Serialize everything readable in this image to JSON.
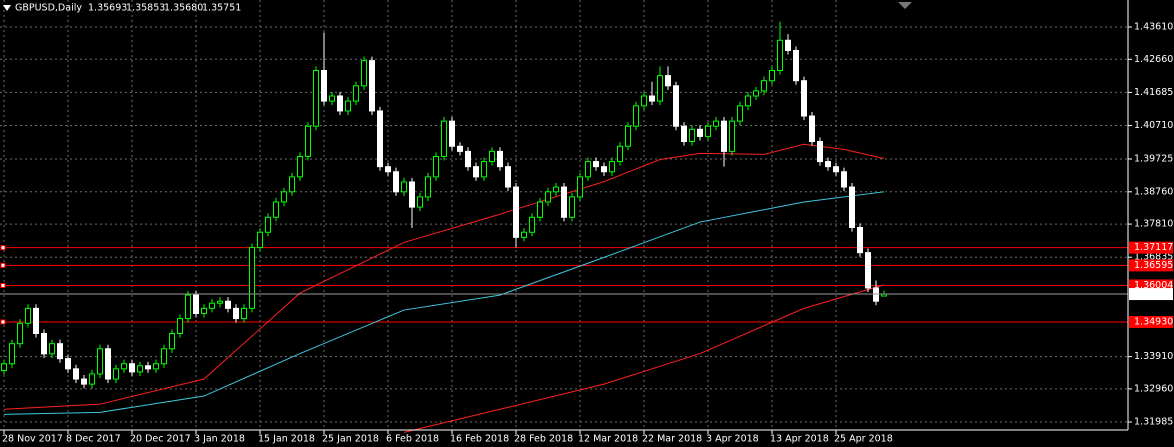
{
  "chart_data": {
    "type": "candlestick",
    "symbol": "GBPUSD,Daily",
    "quote": [
      1.35693,
      1.35853,
      1.3568,
      1.35751
    ],
    "quote_labels": [
      "1.35693",
      "1.35853",
      "1.35680",
      "1.35751"
    ],
    "xlim": [
      -0.5,
      140.5
    ],
    "ylim": [
      1.3175,
      1.44405
    ],
    "xticks": [
      {
        "value": 0,
        "label": "28 Nov 2017"
      },
      {
        "value": 8,
        "label": "8 Dec 2017"
      },
      {
        "value": 16,
        "label": "20 Dec 2017"
      },
      {
        "value": 24,
        "label": "3 Jan 2018"
      },
      {
        "value": 32,
        "label": "15 Jan 2018"
      },
      {
        "value": 40,
        "label": "25 Jan 2018"
      },
      {
        "value": 48,
        "label": "6 Feb 2018"
      },
      {
        "value": 56,
        "label": "16 Feb 2018"
      },
      {
        "value": 64,
        "label": "28 Feb 2018"
      },
      {
        "value": 72,
        "label": "12 Mar 2018"
      },
      {
        "value": 80,
        "label": "22 Mar 2018"
      },
      {
        "value": 88,
        "label": "3 Apr 2018"
      },
      {
        "value": 96,
        "label": "13 Apr 2018"
      },
      {
        "value": 104,
        "label": "25 Apr 2018"
      }
    ],
    "yticks": [
      {
        "value": 1.4361,
        "label": "1.43610"
      },
      {
        "value": 1.4266,
        "label": "1.42660"
      },
      {
        "value": 1.41685,
        "label": "1.41685"
      },
      {
        "value": 1.4071,
        "label": "1.40710"
      },
      {
        "value": 1.39725,
        "label": "1.39725"
      },
      {
        "value": 1.3876,
        "label": "1.38760"
      },
      {
        "value": 1.3781,
        "label": "1.37810"
      },
      {
        "value": 1.36835,
        "label": "1.36835"
      },
      {
        "value": 1.3391,
        "label": "1.33910"
      },
      {
        "value": 1.3296,
        "label": "1.32960"
      },
      {
        "value": 1.31985,
        "label": "1.31985"
      }
    ],
    "grid": true,
    "up_color": "#00ff00",
    "down_color": "#ffffff",
    "levels": [
      {
        "value": 1.37117,
        "label": "1.37117"
      },
      {
        "value": 1.36595,
        "label": "1.36595"
      },
      {
        "value": 1.36004,
        "label": "1.36004"
      },
      {
        "value": 1.3493,
        "label": "1.34930"
      }
    ],
    "level_color": "#ff0000",
    "ohlc": [
      [
        1.335,
        1.3382,
        1.3338,
        1.337
      ],
      [
        1.337,
        1.3441,
        1.3358,
        1.3429
      ],
      [
        1.3429,
        1.3501,
        1.3417,
        1.3489
      ],
      [
        1.3489,
        1.3545,
        1.3477,
        1.3533
      ],
      [
        1.3533,
        1.3545,
        1.3447,
        1.3459
      ],
      [
        1.3459,
        1.3471,
        1.3387,
        1.3399
      ],
      [
        1.3399,
        1.3441,
        1.3387,
        1.3429
      ],
      [
        1.3429,
        1.3441,
        1.3373,
        1.3385
      ],
      [
        1.3385,
        1.3397,
        1.3343,
        1.3355
      ],
      [
        1.3355,
        1.3367,
        1.3313,
        1.3325
      ],
      [
        1.3325,
        1.3337,
        1.3298,
        1.331
      ],
      [
        1.331,
        1.3352,
        1.3298,
        1.334
      ],
      [
        1.334,
        1.3426,
        1.3328,
        1.3414
      ],
      [
        1.3414,
        1.3426,
        1.3313,
        1.3325
      ],
      [
        1.3325,
        1.3367,
        1.3313,
        1.3355
      ],
      [
        1.3355,
        1.3382,
        1.3343,
        1.337
      ],
      [
        1.337,
        1.3382,
        1.3334,
        1.3346
      ],
      [
        1.3346,
        1.3376,
        1.3334,
        1.3364
      ],
      [
        1.3364,
        1.3376,
        1.3343,
        1.3355
      ],
      [
        1.3355,
        1.3382,
        1.3343,
        1.337
      ],
      [
        1.337,
        1.3426,
        1.3358,
        1.3414
      ],
      [
        1.3414,
        1.3471,
        1.3402,
        1.3459
      ],
      [
        1.3459,
        1.3515,
        1.3447,
        1.3503
      ],
      [
        1.3503,
        1.3584,
        1.3491,
        1.3572
      ],
      [
        1.3572,
        1.3584,
        1.3506,
        1.3518
      ],
      [
        1.3518,
        1.3545,
        1.3506,
        1.3533
      ],
      [
        1.3533,
        1.356,
        1.3521,
        1.3548
      ],
      [
        1.3548,
        1.3566,
        1.3536,
        1.3554
      ],
      [
        1.3554,
        1.3566,
        1.3521,
        1.3533
      ],
      [
        1.3533,
        1.3545,
        1.3491,
        1.3503
      ],
      [
        1.3503,
        1.3545,
        1.3491,
        1.3533
      ],
      [
        1.3533,
        1.3724,
        1.3521,
        1.3712
      ],
      [
        1.3712,
        1.3769,
        1.37,
        1.3757
      ],
      [
        1.3757,
        1.3813,
        1.3745,
        1.3801
      ],
      [
        1.3801,
        1.3858,
        1.3789,
        1.3846
      ],
      [
        1.3846,
        1.3888,
        1.3834,
        1.3876
      ],
      [
        1.3876,
        1.3932,
        1.3864,
        1.392
      ],
      [
        1.392,
        1.3992,
        1.3908,
        1.398
      ],
      [
        1.398,
        1.4081,
        1.3968,
        1.4069
      ],
      [
        1.4069,
        1.4245,
        1.4057,
        1.4233
      ],
      [
        1.4233,
        1.4345,
        1.4131,
        1.4143
      ],
      [
        1.4143,
        1.417,
        1.4131,
        1.4158
      ],
      [
        1.4158,
        1.417,
        1.4102,
        1.4114
      ],
      [
        1.4114,
        1.4155,
        1.4102,
        1.4143
      ],
      [
        1.4143,
        1.42,
        1.4131,
        1.4188
      ],
      [
        1.4188,
        1.4274,
        1.4176,
        1.4262
      ],
      [
        1.4262,
        1.4274,
        1.4102,
        1.4114
      ],
      [
        1.4114,
        1.4126,
        1.3938,
        1.395
      ],
      [
        1.395,
        1.3962,
        1.3923,
        1.3935
      ],
      [
        1.3935,
        1.3947,
        1.3864,
        1.3876
      ],
      [
        1.3876,
        1.3917,
        1.3864,
        1.3905
      ],
      [
        1.3905,
        1.3917,
        1.377,
        1.3831
      ],
      [
        1.3831,
        1.3873,
        1.3819,
        1.3861
      ],
      [
        1.3861,
        1.3932,
        1.3849,
        1.392
      ],
      [
        1.392,
        1.3992,
        1.3908,
        1.398
      ],
      [
        1.398,
        1.4096,
        1.3968,
        1.4084
      ],
      [
        1.4084,
        1.4096,
        1.3998,
        1.401
      ],
      [
        1.401,
        1.4022,
        1.3983,
        1.3995
      ],
      [
        1.3995,
        1.4007,
        1.3938,
        1.395
      ],
      [
        1.395,
        1.3962,
        1.3908,
        1.392
      ],
      [
        1.392,
        1.3977,
        1.3908,
        1.3965
      ],
      [
        1.3965,
        1.4007,
        1.3953,
        1.3995
      ],
      [
        1.3995,
        1.4007,
        1.3938,
        1.395
      ],
      [
        1.395,
        1.3962,
        1.3878,
        1.389
      ],
      [
        1.389,
        1.3902,
        1.3712,
        1.3742
      ],
      [
        1.3742,
        1.3769,
        1.373,
        1.3757
      ],
      [
        1.3757,
        1.3813,
        1.3745,
        1.3801
      ],
      [
        1.3801,
        1.3858,
        1.3789,
        1.3846
      ],
      [
        1.3846,
        1.3888,
        1.3834,
        1.3876
      ],
      [
        1.3876,
        1.3902,
        1.3864,
        1.389
      ],
      [
        1.389,
        1.3902,
        1.3789,
        1.3801
      ],
      [
        1.3801,
        1.3873,
        1.3789,
        1.3861
      ],
      [
        1.3861,
        1.3932,
        1.3849,
        1.392
      ],
      [
        1.392,
        1.3977,
        1.3908,
        1.3965
      ],
      [
        1.3965,
        1.3977,
        1.3938,
        1.395
      ],
      [
        1.395,
        1.3962,
        1.3923,
        1.3935
      ],
      [
        1.3935,
        1.3977,
        1.3923,
        1.3965
      ],
      [
        1.3965,
        1.4022,
        1.3953,
        1.401
      ],
      [
        1.401,
        1.4081,
        1.3998,
        1.4069
      ],
      [
        1.4069,
        1.4141,
        1.4057,
        1.4129
      ],
      [
        1.4129,
        1.417,
        1.4117,
        1.4158
      ],
      [
        1.4158,
        1.42,
        1.4131,
        1.4143
      ],
      [
        1.4143,
        1.4245,
        1.4131,
        1.4218
      ],
      [
        1.4218,
        1.4245,
        1.4176,
        1.4188
      ],
      [
        1.4188,
        1.42,
        1.4057,
        1.4069
      ],
      [
        1.4069,
        1.4081,
        1.4012,
        1.4024
      ],
      [
        1.4024,
        1.4072,
        1.4012,
        1.406
      ],
      [
        1.406,
        1.4072,
        1.4027,
        1.4039
      ],
      [
        1.4039,
        1.4081,
        1.4027,
        1.4069
      ],
      [
        1.4069,
        1.4096,
        1.4057,
        1.4084
      ],
      [
        1.4084,
        1.4096,
        1.395,
        1.3995
      ],
      [
        1.3995,
        1.4096,
        1.3983,
        1.4084
      ],
      [
        1.4084,
        1.4141,
        1.4072,
        1.4129
      ],
      [
        1.4129,
        1.417,
        1.4117,
        1.4158
      ],
      [
        1.4158,
        1.4185,
        1.4146,
        1.4173
      ],
      [
        1.4173,
        1.4215,
        1.4161,
        1.4203
      ],
      [
        1.4203,
        1.4245,
        1.4191,
        1.4233
      ],
      [
        1.4233,
        1.4377,
        1.4221,
        1.4322
      ],
      [
        1.4322,
        1.434,
        1.428,
        1.4292
      ],
      [
        1.4292,
        1.4304,
        1.4191,
        1.4203
      ],
      [
        1.4203,
        1.4215,
        1.4087,
        1.4099
      ],
      [
        1.4099,
        1.4111,
        1.4012,
        1.4024
      ],
      [
        1.4024,
        1.4036,
        1.3953,
        1.3965
      ],
      [
        1.3965,
        1.3977,
        1.3938,
        1.395
      ],
      [
        1.395,
        1.3962,
        1.3923,
        1.3935
      ],
      [
        1.3935,
        1.3947,
        1.3878,
        1.389
      ],
      [
        1.389,
        1.3902,
        1.3759,
        1.3771
      ],
      [
        1.3771,
        1.3783,
        1.3685,
        1.3697
      ],
      [
        1.3697,
        1.3709,
        1.3581,
        1.3593
      ],
      [
        1.3593,
        1.3615,
        1.3542,
        1.3554
      ],
      [
        1.35693,
        1.35853,
        1.3568,
        1.35751
      ]
    ],
    "series": [
      {
        "color": "#ff2020",
        "x": [
          0,
          12,
          25,
          37,
          50,
          62,
          75,
          82,
          87,
          95,
          100,
          105,
          110
        ],
        "values": [
          1.3236,
          1.3251,
          1.3325,
          1.3578,
          1.3727,
          1.381,
          1.3906,
          1.3971,
          1.3989,
          1.3986,
          1.4016,
          1.4001,
          1.3974
        ]
      },
      {
        "color": "#40c8e0",
        "x": [
          0,
          12,
          25,
          37,
          50,
          62,
          75,
          87,
          100,
          110
        ],
        "values": [
          1.3221,
          1.3227,
          1.3275,
          1.34,
          1.3528,
          1.3572,
          1.3683,
          1.3787,
          1.3846,
          1.3876
        ]
      },
      {
        "color": "#ff2020",
        "x": [
          50,
          62,
          75,
          87,
          100,
          110
        ],
        "values": [
          1.3168,
          1.3236,
          1.331,
          1.34,
          1.3533,
          1.3602
        ]
      }
    ]
  }
}
